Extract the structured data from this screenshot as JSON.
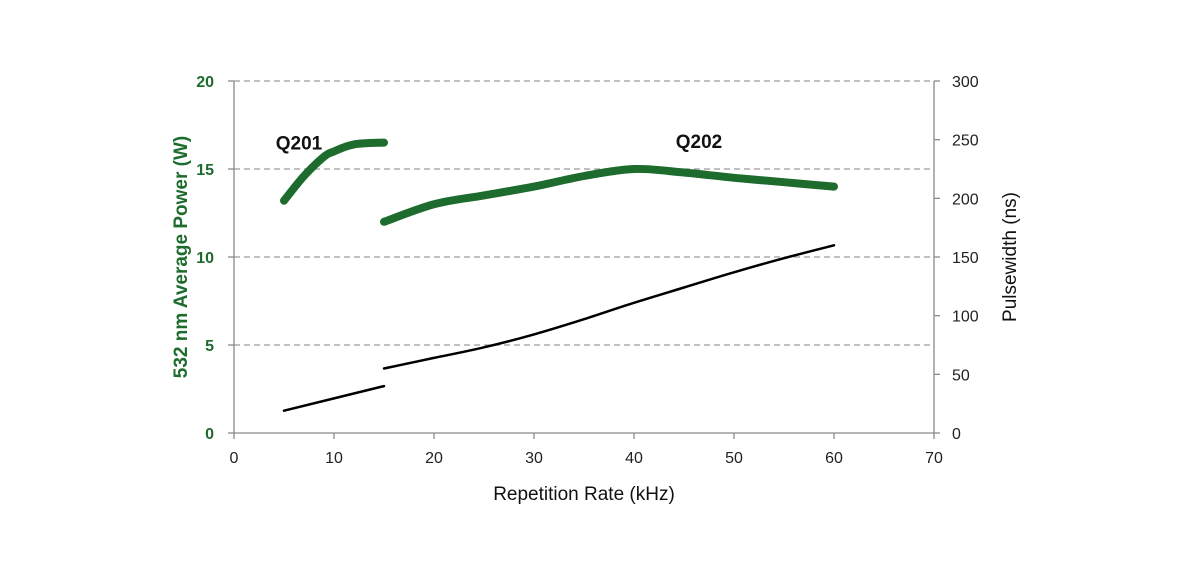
{
  "chart_data": {
    "type": "line",
    "xlabel": "Repetition Rate (kHz)",
    "ylabel_left": "532 nm Average Power (W)",
    "ylabel_right": "Pulsewidth (ns)",
    "xlim": [
      0,
      70
    ],
    "ylim_left": [
      0,
      20
    ],
    "ylim_right": [
      0,
      300
    ],
    "x_ticks": [
      "0",
      "10",
      "20",
      "30",
      "40",
      "50",
      "60",
      "70"
    ],
    "y_left_ticks": [
      "0",
      "5",
      "10",
      "15",
      "20"
    ],
    "y_right_ticks": [
      "0",
      "50",
      "100",
      "150",
      "200",
      "250",
      "300"
    ],
    "grid": "horizontal dashed",
    "series": [
      {
        "name": "Q201",
        "axis": "left",
        "color": "#1e6b2e",
        "points": [
          [
            5,
            13.2
          ],
          [
            7,
            14.6
          ],
          [
            9,
            15.7
          ],
          [
            10,
            16.0
          ],
          [
            12,
            16.4
          ],
          [
            15,
            16.5
          ]
        ]
      },
      {
        "name": "Q202",
        "axis": "left",
        "color": "#1e6b2e",
        "points": [
          [
            15,
            12.0
          ],
          [
            20,
            13.0
          ],
          [
            25,
            13.5
          ],
          [
            30,
            14.0
          ],
          [
            35,
            14.6
          ],
          [
            40,
            15.0
          ],
          [
            45,
            14.8
          ],
          [
            50,
            14.5
          ],
          [
            55,
            14.25
          ],
          [
            60,
            14.0
          ]
        ]
      },
      {
        "axis": "right",
        "color": "#000000",
        "points": [
          [
            5,
            19
          ],
          [
            15,
            40
          ]
        ]
      },
      {
        "axis": "right",
        "color": "#000000",
        "points": [
          [
            15,
            55
          ],
          [
            20,
            64
          ],
          [
            25,
            73
          ],
          [
            30,
            84
          ],
          [
            35,
            97
          ],
          [
            40,
            111
          ],
          [
            45,
            124
          ],
          [
            50,
            137
          ],
          [
            55,
            149
          ],
          [
            60,
            160
          ]
        ]
      }
    ],
    "annotations": [
      {
        "text": "Q201",
        "x": 6.5,
        "y": 16.5
      },
      {
        "text": "Q202",
        "x": 46.5,
        "y": 16.6
      }
    ]
  }
}
